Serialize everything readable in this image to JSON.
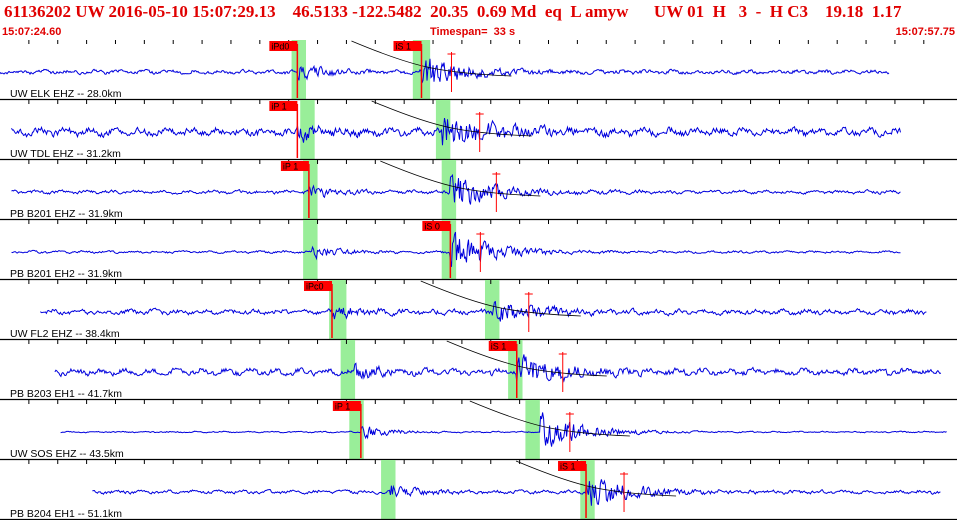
{
  "header": {
    "title": "61136202 UW 2016-05-10 15:07:29.13    46.5133 -122.5482  20.35  0.69 Md  eq  L amyw      UW 01  H   3  -  H C3    19.18  1.17",
    "start_time": "15:07:24.60",
    "timespan": "Timespan=  33 s",
    "end_time": "15:07:57.75"
  },
  "colors": {
    "trace": "#0000dd",
    "pick": "#ff0000",
    "text_red": "#e00000",
    "window": "#99ee99",
    "grid": "#000000"
  },
  "chart_data": {
    "type": "line",
    "title": "61136202 UW 2016-05-10 15:07:29.13",
    "x_range_s": [
      0,
      33.15
    ],
    "traces": [
      {
        "label": "UW ELK EHZ -- 28.0km",
        "data_start": 0.0,
        "data_end": 30.8,
        "p_time": 10.3,
        "s_time": 14.6,
        "p_label": "iPd0",
        "s_label": "iS 1",
        "p_window": [
          10.1,
          10.6
        ],
        "s_window": [
          14.3,
          14.9
        ],
        "amp": 0.35,
        "burst_amp": 1.6
      },
      {
        "label": "UW TDL EHZ -- 31.2km",
        "data_start": 0.4,
        "data_end": 31.2,
        "p_time": 10.3,
        "s_time": 15.3,
        "p_label": "iP 1",
        "s_label": "",
        "p_window": [
          10.4,
          10.9
        ],
        "s_window": [
          15.1,
          15.6
        ],
        "amp": 0.7,
        "burst_amp": 1.7
      },
      {
        "label": "PB B201 EHZ -- 31.9km",
        "data_start": 0.4,
        "data_end": 31.2,
        "p_time": 10.7,
        "s_time": 15.6,
        "p_label": "iP 1",
        "s_label": "",
        "p_window": [
          10.5,
          11.0
        ],
        "s_window": [
          15.3,
          15.8
        ],
        "amp": 0.3,
        "burst_amp": 1.8
      },
      {
        "label": "PB B201 EH2 -- 31.9km",
        "data_start": 0.4,
        "data_end": 31.2,
        "p_time": 10.8,
        "s_time": 15.6,
        "p_label": "",
        "s_label": "iS 0",
        "p_window": [
          10.5,
          11.0
        ],
        "s_window": [
          15.3,
          15.8
        ],
        "amp": 0.2,
        "burst_amp": 1.9
      },
      {
        "label": "UW FL2 EHZ -- 38.4km",
        "data_start": 1.4,
        "data_end": 32.1,
        "p_time": 11.5,
        "s_time": 17.0,
        "p_label": "iPc0",
        "s_label": "",
        "p_window": [
          11.4,
          12.0
        ],
        "s_window": [
          16.8,
          17.3
        ],
        "amp": 0.45,
        "burst_amp": 1.2
      },
      {
        "label": "PB B203 EH1 -- 41.7km",
        "data_start": 1.9,
        "data_end": 32.6,
        "p_time": 12.2,
        "s_time": 17.9,
        "p_label": "",
        "s_label": "iS 1",
        "p_window": [
          11.8,
          12.3
        ],
        "s_window": [
          17.6,
          18.1
        ],
        "amp": 0.55,
        "burst_amp": 1.5
      },
      {
        "label": "UW SOS EHZ -- 43.5km",
        "data_start": 2.1,
        "data_end": 32.8,
        "p_time": 12.5,
        "s_time": 18.7,
        "p_label": "iP 1",
        "s_label": "",
        "p_window": [
          12.1,
          12.6
        ],
        "s_window": [
          18.2,
          18.7
        ],
        "amp": 0.12,
        "burst_amp": 1.9
      },
      {
        "label": "PB B204 EH1 -- 51.1km",
        "data_start": 3.2,
        "data_end": 32.6,
        "p_time": 13.5,
        "s_time": 20.3,
        "p_label": "",
        "s_label": "iS 1",
        "p_window": [
          13.2,
          13.7
        ],
        "s_window": [
          20.1,
          20.6
        ],
        "amp": 0.3,
        "burst_amp": 1.6
      }
    ]
  }
}
